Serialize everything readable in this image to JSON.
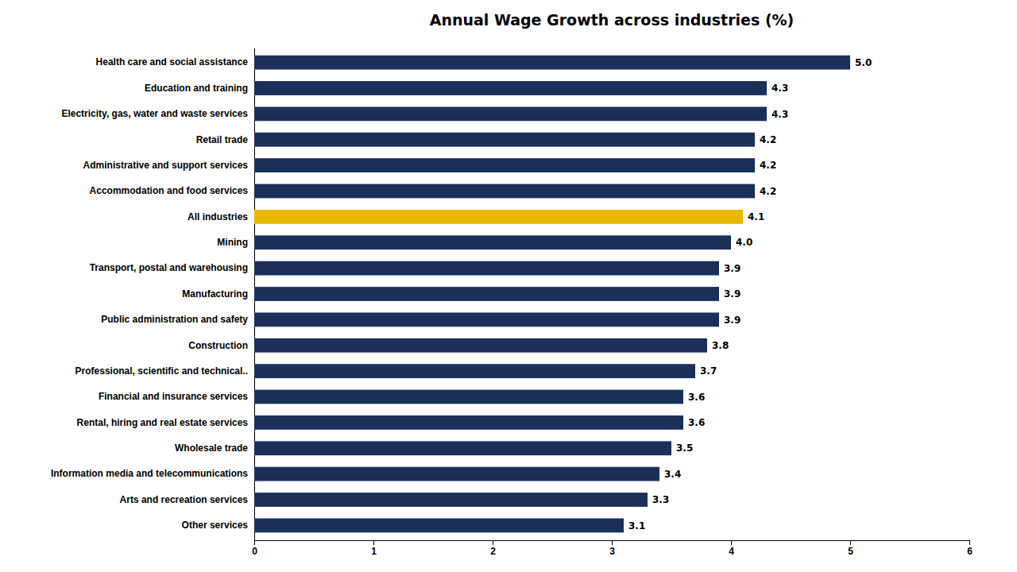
{
  "chart_data": {
    "type": "bar",
    "orientation": "horizontal",
    "title": "Annual Wage Growth across industries (%)",
    "categories": [
      "Health care and social assistance",
      "Education and training",
      "Electricity, gas, water and waste services",
      "Retail trade",
      "Administrative and support services",
      "Accommodation and food services",
      "All industries",
      "Mining",
      "Transport, postal and warehousing",
      "Manufacturing",
      "Public administration and safety",
      "Construction",
      "Professional, scientific and technical..",
      "Financial and insurance services",
      "Rental, hiring and real estate services",
      "Wholesale trade",
      "Information media and telecommunications",
      "Arts and recreation services",
      "Other services"
    ],
    "values": [
      5.0,
      4.3,
      4.3,
      4.2,
      4.2,
      4.2,
      4.1,
      4.0,
      3.9,
      3.9,
      3.9,
      3.8,
      3.7,
      3.6,
      3.6,
      3.5,
      3.4,
      3.3,
      3.1
    ],
    "value_labels": [
      "5.0",
      "4.3",
      "4.3",
      "4.2",
      "4.2",
      "4.2",
      "4.1",
      "4.0",
      "3.9",
      "3.9",
      "3.9",
      "3.8",
      "3.7",
      "3.6",
      "3.6",
      "3.5",
      "3.4",
      "3.3",
      "3.1"
    ],
    "colors": [
      "#1a2f5a",
      "#1a2f5a",
      "#1a2f5a",
      "#1a2f5a",
      "#1a2f5a",
      "#1a2f5a",
      "#e8b800",
      "#1a2f5a",
      "#1a2f5a",
      "#1a2f5a",
      "#1a2f5a",
      "#1a2f5a",
      "#1a2f5a",
      "#1a2f5a",
      "#1a2f5a",
      "#1a2f5a",
      "#1a2f5a",
      "#1a2f5a",
      "#1a2f5a"
    ],
    "xlim": [
      0,
      6
    ],
    "xticks": [
      0,
      1,
      2,
      3,
      4,
      5,
      6
    ],
    "data_labels": true,
    "grid": false
  }
}
